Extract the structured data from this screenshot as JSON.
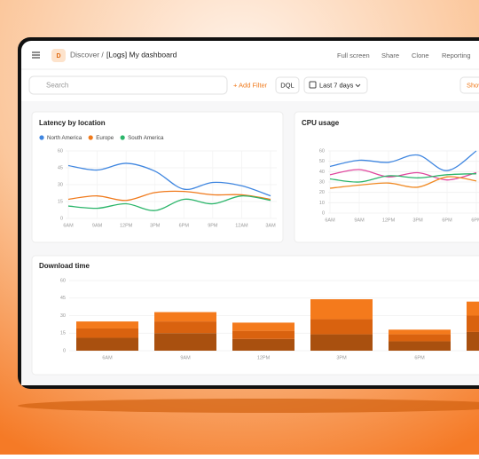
{
  "header": {
    "badge": "D",
    "breadcrumb": "Discover /",
    "title": "[Logs] My dashboard",
    "actions": [
      "Full screen",
      "Share",
      "Clone",
      "Reporting"
    ]
  },
  "toolbar": {
    "search_placeholder": "Search",
    "add_filter": "+ Add Filter",
    "dql": "DQL",
    "time_range": "Last 7 days",
    "show": "Show"
  },
  "chart_data": [
    {
      "type": "line",
      "title": "Latency by location",
      "legend": "top-left",
      "grid": true,
      "categories": [
        "6AM",
        "9AM",
        "12PM",
        "3PM",
        "6PM",
        "9PM",
        "12AM",
        "3AM"
      ],
      "ylim": [
        0,
        60
      ],
      "yticks": [
        0,
        15,
        30,
        45,
        60
      ],
      "series": [
        {
          "name": "North America",
          "color": "#3f86e0",
          "values": [
            47,
            43,
            49,
            42,
            26,
            32,
            29,
            20
          ]
        },
        {
          "name": "Europe",
          "color": "#f07a1c",
          "values": [
            17,
            20,
            16,
            23,
            24,
            21,
            21,
            17
          ]
        },
        {
          "name": "South America",
          "color": "#2bb56a",
          "values": [
            11,
            9,
            13,
            7,
            17,
            13,
            20,
            16
          ]
        }
      ]
    },
    {
      "type": "line",
      "title": "CPU usage",
      "grid": true,
      "categories": [
        "6AM",
        "9AM",
        "12PM",
        "3PM",
        "6PM",
        "6PM"
      ],
      "ylim": [
        0,
        60
      ],
      "yticks": [
        0,
        10,
        20,
        30,
        40,
        50,
        60
      ],
      "series": [
        {
          "color": "#3f86e0",
          "values": [
            45,
            51,
            49,
            56,
            41,
            60
          ]
        },
        {
          "color": "#e0479e",
          "values": [
            37,
            42,
            35,
            39,
            32,
            39
          ]
        },
        {
          "color": "#2bb56a",
          "values": [
            33,
            30,
            36,
            34,
            37,
            38
          ]
        },
        {
          "color": "#f08a24",
          "values": [
            24,
            27,
            29,
            25,
            35,
            31
          ]
        }
      ]
    },
    {
      "type": "bar",
      "stacked": true,
      "title": "Download time",
      "grid": true,
      "categories": [
        "6AM",
        "9AM",
        "12PM",
        "3PM",
        "6PM",
        null
      ],
      "ylim": [
        0,
        60
      ],
      "yticks": [
        0,
        15,
        30,
        45,
        60
      ],
      "series": [
        {
          "color": "#a9500f",
          "values": [
            11,
            15,
            10,
            14,
            8,
            16
          ]
        },
        {
          "color": "#d9620f",
          "values": [
            8,
            10,
            7,
            13,
            6,
            14
          ]
        },
        {
          "color": "#f47a1c",
          "values": [
            6,
            8,
            7,
            17,
            4,
            12
          ]
        }
      ]
    }
  ]
}
